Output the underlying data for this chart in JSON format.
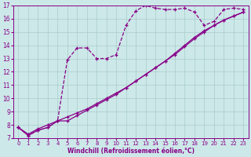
{
  "xlabel": "Windchill (Refroidissement éolien,°C)",
  "bg_color": "#cce8e8",
  "line_color": "#880088",
  "grid_color": "#aacccc",
  "xlim": [
    -0.5,
    23.5
  ],
  "ylim": [
    7,
    17
  ],
  "xticks": [
    0,
    1,
    2,
    3,
    4,
    5,
    6,
    7,
    8,
    9,
    10,
    11,
    12,
    13,
    14,
    15,
    16,
    17,
    18,
    19,
    20,
    21,
    22,
    23
  ],
  "yticks": [
    7,
    8,
    9,
    10,
    11,
    12,
    13,
    14,
    15,
    16,
    17
  ],
  "curve1_x": [
    0,
    1,
    2,
    3,
    4,
    5,
    6,
    7,
    8,
    9,
    10,
    11,
    12,
    13,
    14,
    15,
    16,
    17,
    18,
    19,
    20,
    21,
    22,
    23
  ],
  "curve1_y": [
    7.8,
    7.2,
    7.6,
    7.8,
    8.3,
    12.9,
    13.8,
    13.8,
    13.0,
    13.0,
    13.3,
    15.5,
    16.6,
    17.0,
    16.8,
    16.7,
    16.7,
    16.8,
    16.5,
    15.5,
    15.8,
    16.7,
    16.8,
    16.7
  ],
  "curve2_x": [
    0,
    1,
    2,
    3,
    4,
    5,
    6,
    7,
    8,
    9,
    10,
    11,
    12,
    13,
    14,
    15,
    16,
    17,
    18,
    19,
    20,
    21,
    22,
    23
  ],
  "curve2_y": [
    7.8,
    7.3,
    7.7,
    8.0,
    8.3,
    8.6,
    8.9,
    9.2,
    9.6,
    10.0,
    10.4,
    10.8,
    11.3,
    11.8,
    12.3,
    12.8,
    13.3,
    13.9,
    14.5,
    15.0,
    15.5,
    15.9,
    16.2,
    16.5
  ],
  "curve3_x": [
    0,
    1,
    2,
    3,
    4,
    5,
    6,
    7,
    8,
    9,
    10,
    11,
    12,
    13,
    14,
    15,
    16,
    17,
    18,
    19,
    20,
    21,
    22,
    23
  ],
  "curve3_y": [
    7.8,
    7.2,
    7.6,
    7.8,
    8.3,
    8.3,
    8.7,
    9.1,
    9.5,
    9.9,
    10.3,
    10.8,
    11.3,
    11.8,
    12.3,
    12.8,
    13.4,
    14.0,
    14.6,
    15.1,
    15.5,
    15.9,
    16.2,
    16.5
  ]
}
